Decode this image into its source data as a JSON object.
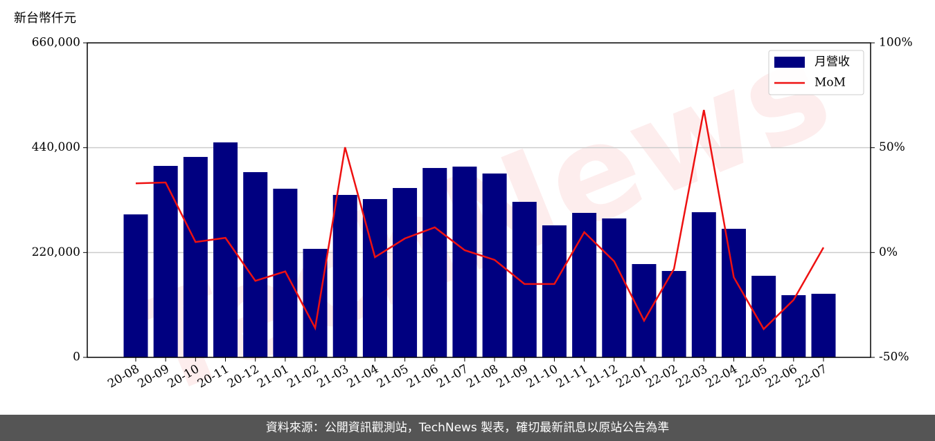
{
  "chart_data": {
    "type": "bar_line",
    "unit_label": "新台幣仟元",
    "watermark": "TechNews",
    "footer": "資料來源：公開資訊觀測站，TechNews 製表，確切最新訊息以原站公告為準",
    "categories": [
      "20-08",
      "20-09",
      "20-10",
      "20-11",
      "20-12",
      "21-01",
      "21-02",
      "21-03",
      "21-04",
      "21-05",
      "21-06",
      "21-07",
      "21-08",
      "21-09",
      "21-10",
      "21-11",
      "21-12",
      "22-01",
      "22-02",
      "22-03",
      "22-04",
      "22-05",
      "22-06",
      "22-07"
    ],
    "series": [
      {
        "name": "月營收",
        "color": "#000080",
        "kind": "bar",
        "values": [
          300000,
          401800,
          420600,
          451100,
          388700,
          353900,
          227700,
          340900,
          332200,
          355400,
          397400,
          400300,
          385800,
          326400,
          277000,
          303200,
          291500,
          195800,
          181300,
          304600,
          269800,
          171200,
          130500,
          133400
        ]
      },
      {
        "name": "MoM",
        "color": "#ee1111",
        "kind": "line",
        "axis": "y2",
        "values": [
          33,
          33.4,
          5,
          7,
          -13.5,
          -9,
          -36,
          50.2,
          -2.2,
          6.7,
          12,
          1.1,
          -3.5,
          -15,
          -15,
          9.7,
          -4.2,
          -32.5,
          -7.8,
          68,
          -11.8,
          -36.5,
          -22.6,
          2.4
        ]
      }
    ],
    "ylim": [
      0,
      660000
    ],
    "yticks": [
      0,
      {
        "value": 220000,
        "label": "220,000"
      },
      {
        "value": 440000,
        "label": "440,000"
      },
      {
        "value": 660000,
        "label": "660,000"
      }
    ],
    "y2lim": [
      -50,
      100
    ],
    "y2ticks": [
      {
        "value": -50,
        "label": "-50%"
      },
      {
        "value": 0,
        "label": "0%"
      },
      {
        "value": 50,
        "label": "50%"
      },
      {
        "value": 100,
        "label": "100%"
      }
    ],
    "grid": true,
    "legend": "upper right"
  }
}
